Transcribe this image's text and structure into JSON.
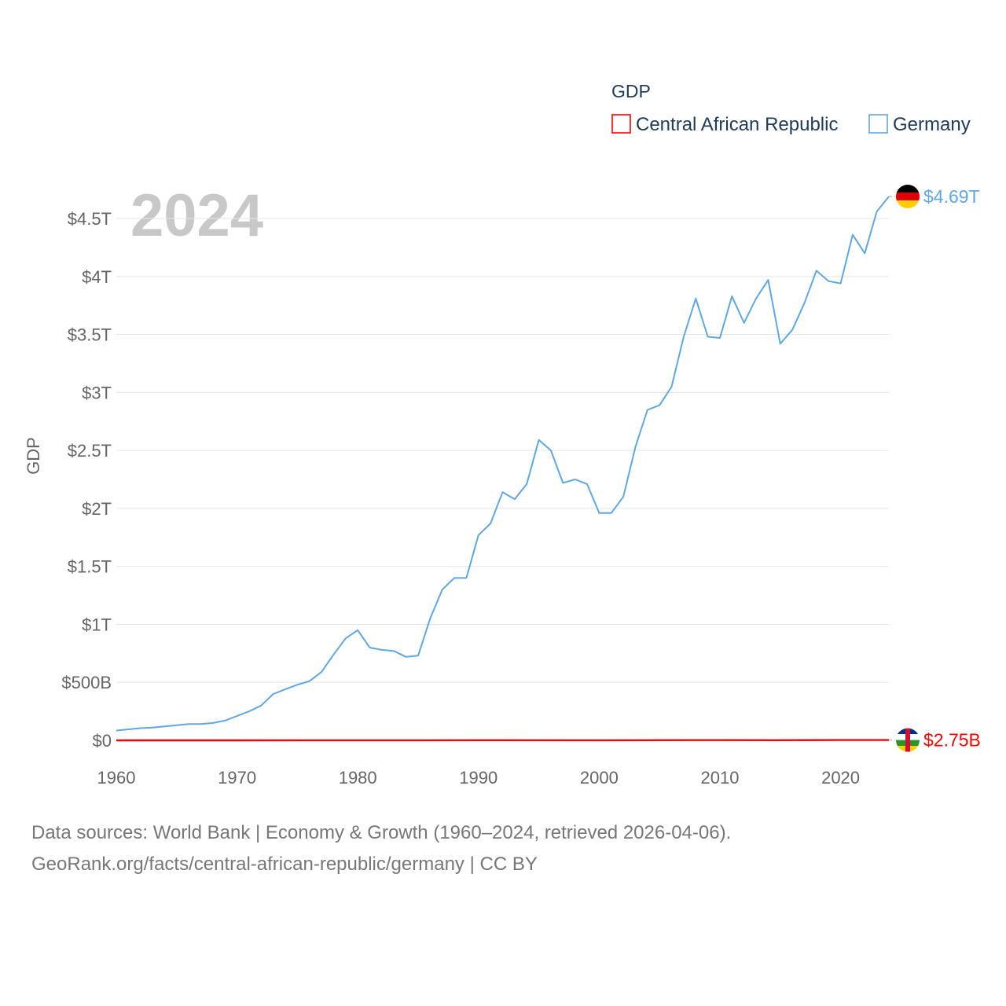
{
  "chart_data": {
    "type": "line",
    "title": "GDP",
    "ylabel": "GDP",
    "xlabel": "",
    "year_label": "2024",
    "xlim": [
      1960,
      2024
    ],
    "ylim": [
      0,
      4.7
    ],
    "x_ticks": [
      1960,
      1970,
      1980,
      1990,
      2000,
      2010,
      2020
    ],
    "x_tick_labels": [
      "1960",
      "1970",
      "1980",
      "1990",
      "2000",
      "2010",
      "2020"
    ],
    "y_ticks": [
      0,
      0.5,
      1,
      1.5,
      2,
      2.5,
      3,
      3.5,
      4,
      4.5
    ],
    "y_tick_labels": [
      "$0",
      "$500B",
      "$1T",
      "$1.5T",
      "$2T",
      "$2.5T",
      "$3T",
      "$3.5T",
      "$4T",
      "$4.5T"
    ],
    "legend": {
      "title": "GDP",
      "placement": "top-right"
    },
    "series": [
      {
        "name": "Central African Republic",
        "color": "#ff0000",
        "end_label": "$2.75B",
        "flag_icon": "central-african-republic-flag-icon",
        "x": [
          1960,
          1970,
          1980,
          1985,
          1990,
          2000,
          2008,
          2010,
          2015,
          2020,
          2024
        ],
        "values": [
          0.0001,
          0.0002,
          0.0008,
          0.0009,
          0.0015,
          0.001,
          0.002,
          0.002,
          0.0016,
          0.0024,
          0.00275
        ]
      },
      {
        "name": "Germany",
        "color": "#5fa7e6",
        "end_label": "$4.69T",
        "flag_icon": "germany-flag-icon",
        "x": [
          1960,
          1961,
          1962,
          1963,
          1964,
          1965,
          1966,
          1967,
          1968,
          1969,
          1970,
          1971,
          1972,
          1973,
          1974,
          1975,
          1976,
          1977,
          1978,
          1979,
          1980,
          1981,
          1982,
          1983,
          1984,
          1985,
          1986,
          1987,
          1988,
          1989,
          1990,
          1991,
          1992,
          1993,
          1994,
          1995,
          1996,
          1997,
          1998,
          1999,
          2000,
          2001,
          2002,
          2003,
          2004,
          2005,
          2006,
          2007,
          2008,
          2009,
          2010,
          2011,
          2012,
          2013,
          2014,
          2015,
          2016,
          2017,
          2018,
          2019,
          2020,
          2021,
          2022,
          2023,
          2024
        ],
        "values": [
          0.085,
          0.095,
          0.105,
          0.11,
          0.12,
          0.13,
          0.14,
          0.14,
          0.15,
          0.17,
          0.21,
          0.25,
          0.3,
          0.4,
          0.44,
          0.48,
          0.51,
          0.59,
          0.74,
          0.88,
          0.95,
          0.8,
          0.78,
          0.77,
          0.72,
          0.73,
          1.05,
          1.3,
          1.4,
          1.4,
          1.77,
          1.87,
          2.14,
          2.08,
          2.21,
          2.59,
          2.5,
          2.22,
          2.25,
          2.21,
          1.96,
          1.96,
          2.1,
          2.53,
          2.85,
          2.89,
          3.05,
          3.48,
          3.81,
          3.48,
          3.47,
          3.83,
          3.6,
          3.81,
          3.97,
          3.42,
          3.54,
          3.77,
          4.05,
          3.96,
          3.94,
          4.36,
          4.2,
          4.56,
          4.69
        ]
      }
    ]
  },
  "source": {
    "line1": "Data sources: World Bank | Economy & Growth (1960–2024, retrieved 2026-04-06).",
    "line2": "GeoRank.org/facts/central-african-republic/germany | CC BY"
  }
}
